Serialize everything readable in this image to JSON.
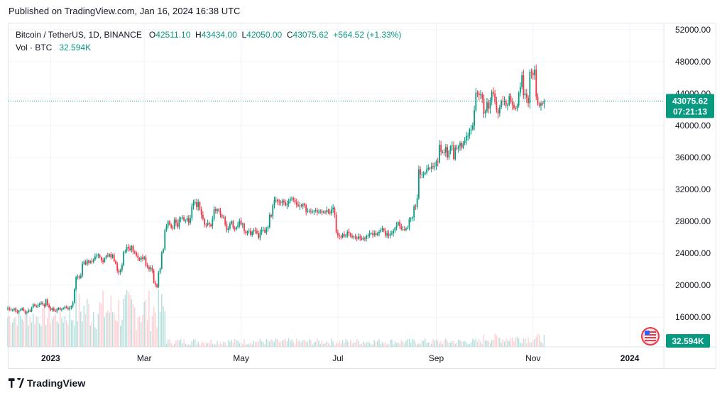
{
  "header": {
    "published": "Published on TradingView.com, Jan 16, 2024 16:38 UTC"
  },
  "legend": {
    "symbol": "Bitcoin / TetherUS, 1D, BINANCE",
    "o_label": "O",
    "o_value": "42511.10",
    "h_label": "H",
    "h_value": "43434.00",
    "l_label": "L",
    "l_value": "42050.00",
    "c_label": "C",
    "c_value": "43075.62",
    "change": "+564.52 (+1.33%)",
    "vol_label": "Vol · BTC",
    "vol_value": "32.594K"
  },
  "price_tag": {
    "price": "43075.62",
    "countdown": "07:21:13"
  },
  "volume_tag": "32.594K",
  "footer": {
    "brand": "TradingView"
  },
  "colors": {
    "up": "#089981",
    "down": "#f23645",
    "grid": "#f0f3fa",
    "vol_up": "#b2dfdb",
    "vol_down": "#ffcdd2"
  },
  "chart_data": {
    "type": "candlestick",
    "yticks": [
      "52000.00",
      "48000.00",
      "44000.00",
      "40000.00",
      "36000.00",
      "32000.00",
      "28000.00",
      "24000.00",
      "20000.00",
      "16000.00"
    ],
    "ylim": [
      14000,
      53000
    ],
    "xticks": [
      {
        "label": "2023",
        "i": 27,
        "bold": true
      },
      {
        "label": "Mar",
        "i": 86,
        "bold": false
      },
      {
        "label": "May",
        "i": 147,
        "bold": false
      },
      {
        "label": "Jul",
        "i": 208,
        "bold": false
      },
      {
        "label": "Sep",
        "i": 270,
        "bold": false
      },
      {
        "label": "Nov",
        "i": 331,
        "bold": false
      },
      {
        "label": "2024",
        "i": 392,
        "bold": true
      }
    ],
    "last_close": 43075.62,
    "closes": [
      17100,
      16950,
      16850,
      16900,
      17100,
      16700,
      16600,
      16800,
      16900,
      17100,
      16800,
      16500,
      16600,
      16850,
      16700,
      17200,
      17600,
      17400,
      17300,
      17500,
      17650,
      17800,
      17600,
      17400,
      18200,
      17500,
      17200,
      16900,
      17100,
      16800,
      16700,
      17000,
      17150,
      16900,
      17000,
      17100,
      17300,
      17150,
      17000,
      17200,
      17400,
      17800,
      19500,
      21000,
      21100,
      20900,
      21200,
      22700,
      22900,
      22600,
      23100,
      22800,
      23000,
      22900,
      23200,
      23600,
      23700,
      23800,
      23500,
      23100,
      22900,
      23400,
      23700,
      23600,
      23900,
      23500,
      23800,
      23000,
      22700,
      21800,
      21600,
      21900,
      22500,
      24200,
      24300,
      24800,
      24600,
      24400,
      24900,
      24200,
      24100,
      23700,
      23400,
      23200,
      23500,
      23300,
      23500,
      22500,
      22300,
      22000,
      22200,
      21800,
      20300,
      20100,
      19800,
      21600,
      22100,
      24100,
      24500,
      26900,
      27400,
      28000,
      27600,
      27200,
      27100,
      28200,
      27800,
      27300,
      28300,
      28400,
      28500,
      28100,
      28100,
      28400,
      27800,
      28400,
      29900,
      30300,
      30400,
      29800,
      30400,
      29500,
      28800,
      28300,
      27600,
      27500,
      27800,
      27600,
      27400,
      28300,
      29500,
      29300,
      29500,
      29300,
      28800,
      28500,
      28500,
      27600,
      26900,
      27100,
      27700,
      28000,
      27200,
      27000,
      27300,
      27500,
      28100,
      27600,
      27700,
      26800,
      26500,
      26700,
      26800,
      26300,
      26700,
      26900,
      26800,
      26500,
      25900,
      26600,
      26900,
      26900,
      26600,
      27100,
      27300,
      28800,
      28600,
      30000,
      30700,
      30700,
      30500,
      30400,
      30300,
      30600,
      30400,
      30000,
      30200,
      30600,
      30800,
      30900,
      30700,
      30400,
      30100,
      29900,
      30000,
      29900,
      30200,
      30000,
      29200,
      29300,
      29300,
      29200,
      29200,
      29300,
      29400,
      29100,
      29200,
      29300,
      29100,
      29200,
      29100,
      29400,
      29200,
      29000,
      29500,
      29700,
      28800,
      26600,
      26200,
      26100,
      26000,
      26400,
      26100,
      26200,
      26700,
      26500,
      26200,
      26000,
      26100,
      26000,
      25800,
      26100,
      25900,
      25700,
      25900,
      25800,
      26200,
      26200,
      26500,
      26500,
      26300,
      26500,
      26300,
      26500,
      26700,
      26900,
      27100,
      26800,
      26200,
      26500,
      26200,
      26400,
      26500,
      26800,
      27200,
      27500,
      27900,
      27400,
      27000,
      27000,
      26900,
      27100,
      27200,
      28300,
      28400,
      28500,
      29900,
      29800,
      30900,
      34500,
      33900,
      33900,
      33900,
      34100,
      34500,
      34700,
      34600,
      34900,
      34800,
      34900,
      35500,
      35400,
      37600,
      36700,
      36700,
      36600,
      37300,
      36000,
      36800,
      37400,
      37500,
      35800,
      37200,
      37100,
      37400,
      37800,
      37200,
      37800,
      38100,
      38700,
      38700,
      39500,
      39500,
      40000,
      41900,
      44100,
      44000,
      43800,
      43900,
      43400,
      41500,
      41800,
      42900,
      42100,
      43200,
      44200,
      44000,
      43000,
      42000,
      41500,
      42300,
      43100,
      43000,
      43100,
      42500,
      42600,
      43700,
      43000,
      42600,
      42200,
      42100,
      42500,
      44100,
      44800,
      46300,
      43800,
      44000,
      43500,
      42800,
      46700,
      46600,
      46300,
      47000,
      43600,
      42700,
      42500,
      42800,
      42700,
      43100
    ]
  }
}
